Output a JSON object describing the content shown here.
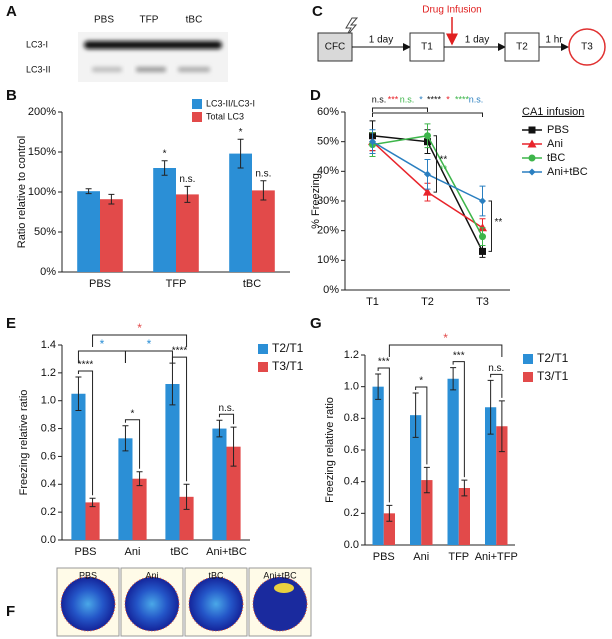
{
  "panel_a": {
    "label": "A",
    "lanes": [
      "PBS",
      "TFP",
      "tBC"
    ],
    "bands": [
      "LC3-I",
      "LC3-II"
    ]
  },
  "panel_c": {
    "label": "C",
    "boxes": [
      "CFC",
      "T1",
      "T2",
      "T3"
    ],
    "intervals": [
      "1 day",
      "1 day",
      "1 hr"
    ],
    "infusion": "Drug Infusion"
  },
  "panel_f": {
    "label": "F",
    "maps": [
      "PBS",
      "Ani",
      "tBC",
      "Ani+tBC"
    ]
  },
  "chart_data": [
    {
      "label": "B",
      "type": "bar",
      "ylabel": "Ratio relative to control",
      "categories": [
        "PBS",
        "TFP",
        "tBC"
      ],
      "series": [
        {
          "name": "LC3-II/LC3-I",
          "color": "#2b8fd6",
          "values": [
            101,
            130,
            148
          ],
          "errors": [
            3,
            9,
            18
          ],
          "marks": [
            null,
            "*",
            "*"
          ]
        },
        {
          "name": "Total LC3",
          "color": "#e24a4a",
          "values": [
            91,
            97,
            102
          ],
          "errors": [
            6,
            10,
            12
          ],
          "marks": [
            null,
            "n.s.",
            "n.s."
          ]
        }
      ],
      "ylim": [
        0,
        200
      ],
      "yticks": [
        {
          "value": 0,
          "label": "0%"
        },
        {
          "value": 50,
          "label": "50%"
        },
        {
          "value": 100,
          "label": "100%"
        },
        {
          "value": 150,
          "label": "150%"
        },
        {
          "value": 200,
          "label": "200%"
        }
      ],
      "legend": "upper right"
    },
    {
      "label": "D",
      "type": "line",
      "ylabel": "% Freezing",
      "categories": [
        "T1",
        "T2",
        "T3"
      ],
      "series": [
        {
          "name": "PBS",
          "color": "#111111",
          "marker": "square",
          "values": [
            52,
            50,
            13
          ],
          "errors": [
            5,
            4,
            2
          ]
        },
        {
          "name": "Ani",
          "color": "#e8242b",
          "marker": "triangle",
          "values": [
            50,
            33,
            21
          ],
          "errors": [
            3,
            3,
            3
          ]
        },
        {
          "name": "tBC",
          "color": "#3db54a",
          "marker": "circle",
          "values": [
            49,
            52,
            18
          ],
          "errors": [
            4,
            4,
            3
          ]
        },
        {
          "name": "Ani+tBC",
          "color": "#2a7fc0",
          "marker": "diamond",
          "values": [
            50,
            39,
            30
          ],
          "errors": [
            4,
            5,
            5
          ]
        }
      ],
      "ylim": [
        0,
        60
      ],
      "yticks": [
        {
          "value": 0,
          "label": "0%"
        },
        {
          "value": 10,
          "label": "10%"
        },
        {
          "value": 20,
          "label": "20%"
        },
        {
          "value": 30,
          "label": "30%"
        },
        {
          "value": 40,
          "label": "40%"
        },
        {
          "value": 50,
          "label": "50%"
        },
        {
          "value": 60,
          "label": "60%"
        }
      ],
      "legend": "right",
      "legend_title": "CA1 infusion",
      "comparisons": [
        {
          "between": [
            "T1",
            "T2"
          ],
          "labels": [
            {
              "text": "n.s.",
              "color": "#111111"
            },
            {
              "text": "***",
              "color": "#e8242b"
            },
            {
              "text": "n.s.",
              "color": "#3db54a"
            },
            {
              "text": "*",
              "color": "#2a7fc0"
            }
          ]
        },
        {
          "between": [
            "T1",
            "T3"
          ],
          "labels": [
            {
              "text": "****",
              "color": "#111111"
            },
            {
              "text": "*",
              "color": "#e8242b"
            },
            {
              "text": "****",
              "color": "#3db54a"
            },
            {
              "text": "n.s.",
              "color": "#2a7fc0"
            }
          ]
        }
      ],
      "side_marks": [
        {
          "at": "T2",
          "labels": [
            {
              "text": "**",
              "color": "#111111"
            },
            {
              "text": "**",
              "color": "#3db54a"
            }
          ]
        },
        {
          "at": "T3",
          "labels": [
            {
              "text": "**",
              "color": "#111111"
            }
          ]
        }
      ]
    },
    {
      "label": "E",
      "type": "bar",
      "ylabel": "Freezing relative ratio",
      "categories": [
        "PBS",
        "Ani",
        "tBC",
        "Ani+tBC"
      ],
      "series": [
        {
          "name": "T2/T1",
          "color": "#2b8fd6",
          "values": [
            1.05,
            0.73,
            1.12,
            0.8
          ],
          "errors": [
            0.12,
            0.09,
            0.15,
            0.06
          ]
        },
        {
          "name": "T3/T1",
          "color": "#e24a4a",
          "values": [
            0.27,
            0.44,
            0.31,
            0.67
          ],
          "errors": [
            0.03,
            0.05,
            0.09,
            0.14
          ]
        }
      ],
      "ylim": [
        0,
        1.4
      ],
      "yticks": [
        {
          "value": 0,
          "label": "0.0"
        },
        0.2,
        0.4,
        0.6,
        0.8,
        {
          "value": 1,
          "label": "1.0"
        },
        1.2,
        1.4
      ],
      "legend": "right",
      "pair_marks": [
        "****",
        "*",
        "****",
        "n.s."
      ],
      "brackets": [
        {
          "between": [
            "PBS",
            "tBC"
          ],
          "series": "T3/T1",
          "text": "*",
          "color": "#e24a4a"
        },
        {
          "between": [
            "PBS",
            "Ani"
          ],
          "series": "T2/T1",
          "text": "*",
          "color": "#2b8fd6"
        },
        {
          "between": [
            "Ani",
            "tBC"
          ],
          "series": "T2/T1",
          "text": "*",
          "color": "#2b8fd6"
        }
      ]
    },
    {
      "label": "G",
      "type": "bar",
      "ylabel": "Freezing relative ratio",
      "categories": [
        "PBS",
        "Ani",
        "TFP",
        "Ani+TFP"
      ],
      "series": [
        {
          "name": "T2/T1",
          "color": "#2b8fd6",
          "values": [
            1.0,
            0.82,
            1.05,
            0.87
          ],
          "errors": [
            0.08,
            0.14,
            0.07,
            0.17
          ]
        },
        {
          "name": "T3/T1",
          "color": "#e24a4a",
          "values": [
            0.2,
            0.41,
            0.36,
            0.75
          ],
          "errors": [
            0.05,
            0.08,
            0.05,
            0.16
          ]
        }
      ],
      "ylim": [
        0,
        1.2
      ],
      "yticks": [
        {
          "value": 0,
          "label": "0.0"
        },
        0.2,
        0.4,
        0.6,
        0.8,
        {
          "value": 1,
          "label": "1.0"
        },
        1.2
      ],
      "legend": "right",
      "pair_marks": [
        "***",
        "*",
        "***",
        "n.s."
      ],
      "brackets": [
        {
          "between": [
            "PBS",
            "Ani+TFP"
          ],
          "series": "T3/T1",
          "text": "*",
          "color": "#e24a4a"
        }
      ]
    }
  ]
}
